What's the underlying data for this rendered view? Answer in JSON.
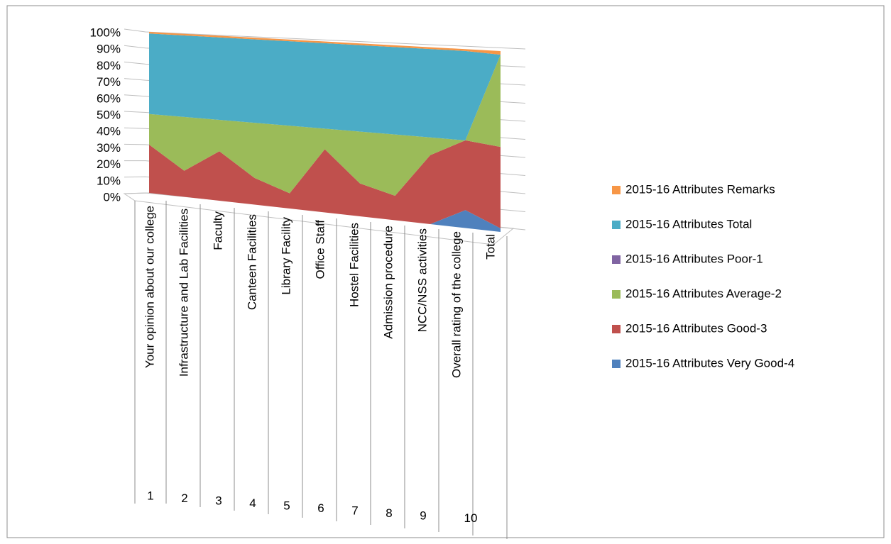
{
  "chart_data": {
    "type": "area3d_stacked_percent",
    "categories": [
      "Your opinion about our college",
      "Infrastructure and Lab Facilities",
      "Faculty",
      "Canteen Facilities",
      "Library Facility",
      "Office Staff",
      "Hostel Facilities",
      "Admission procedure",
      "NCC/NSS activities",
      "Overall rating of the college",
      "Total"
    ],
    "group_labels": [
      "1",
      "2",
      "3",
      "4",
      "5",
      "6",
      "7",
      "8",
      "9",
      "10"
    ],
    "series": [
      {
        "name": "2015-16 Attributes Very Good-4",
        "color": "#4f81bd",
        "values": [
          0,
          0,
          0,
          0,
          0,
          0,
          0,
          0,
          0,
          10,
          2
        ]
      },
      {
        "name": "2015-16 Attributes Good-3",
        "color": "#c0504d",
        "values": [
          30,
          16,
          30,
          16,
          9,
          37,
          19,
          14,
          39,
          39,
          45
        ]
      },
      {
        "name": "2015-16 Attributes Average-2",
        "color": "#9bbb59",
        "values": [
          19,
          33,
          19,
          33,
          40,
          12,
          30,
          35,
          10,
          0,
          51
        ]
      },
      {
        "name": "2015-16 Attributes Poor-1",
        "color": "#8064a2",
        "values": [
          0,
          0,
          0,
          0,
          0,
          0,
          0,
          0,
          0,
          0,
          0
        ]
      },
      {
        "name": "2015-16 Attributes Total",
        "color": "#4bacc6",
        "values": [
          50,
          50,
          50,
          50,
          50,
          50,
          50,
          50,
          50,
          50,
          0
        ]
      },
      {
        "name": "2015-16 Attributes Remarks",
        "color": "#f79646",
        "values": [
          1,
          1,
          1,
          1,
          1,
          1,
          1,
          1,
          1,
          1,
          2
        ]
      }
    ],
    "ylim": [
      0,
      100
    ],
    "yticks": [
      {
        "value": 0,
        "label": "0%"
      },
      {
        "value": 10,
        "label": "10%"
      },
      {
        "value": 20,
        "label": "20%"
      },
      {
        "value": 30,
        "label": "30%"
      },
      {
        "value": 40,
        "label": "40%"
      },
      {
        "value": 50,
        "label": "50%"
      },
      {
        "value": 60,
        "label": "60%"
      },
      {
        "value": 70,
        "label": "70%"
      },
      {
        "value": 80,
        "label": "80%"
      },
      {
        "value": 90,
        "label": "90%"
      },
      {
        "value": 100,
        "label": "100%"
      }
    ],
    "grid": true
  }
}
